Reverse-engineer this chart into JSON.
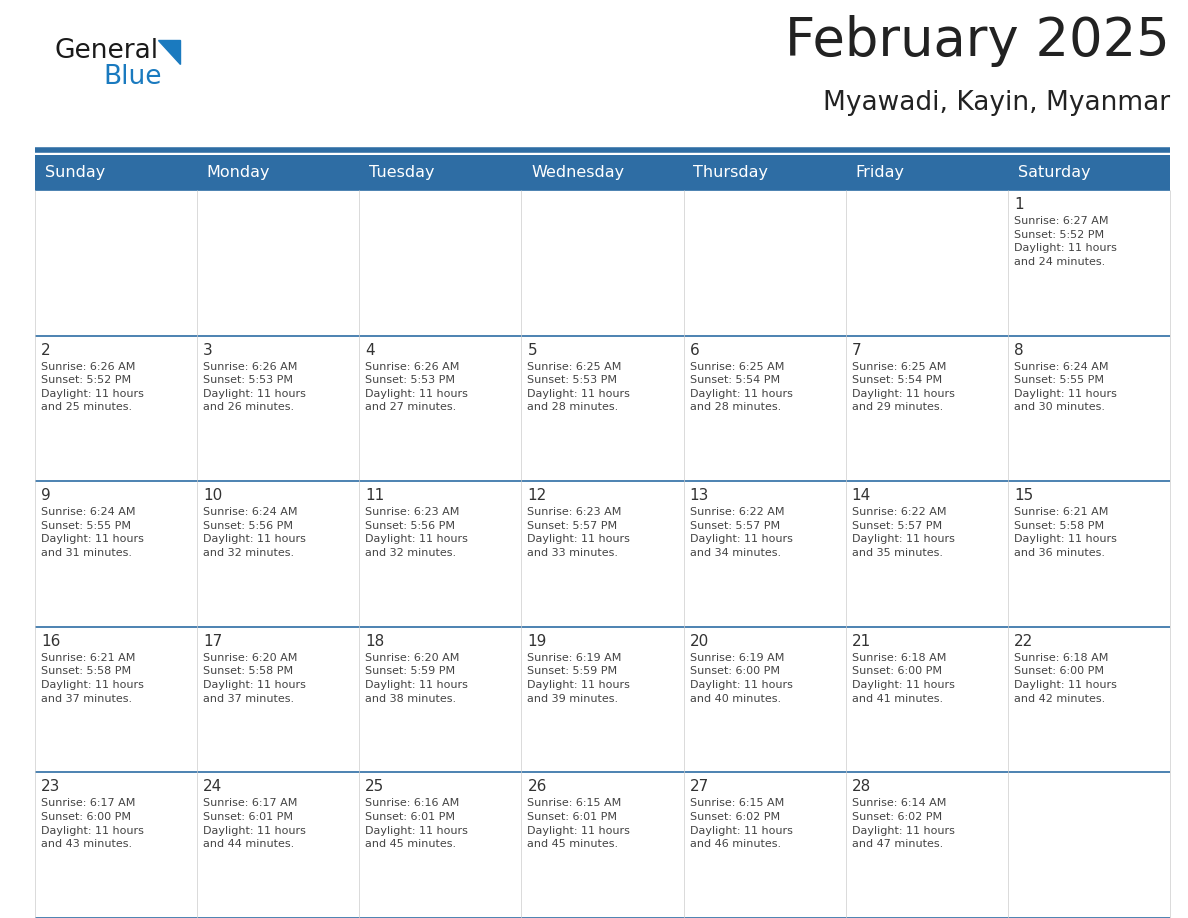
{
  "title": "February 2025",
  "subtitle": "Myawadi, Kayin, Myanmar",
  "header_color": "#2E6DA4",
  "header_text_color": "#FFFFFF",
  "cell_bg_color": "#FFFFFF",
  "cell_alt_bg": "#F5F5F5",
  "border_color": "#2E6DA4",
  "text_color": "#444444",
  "day_number_color": "#333333",
  "days_of_week": [
    "Sunday",
    "Monday",
    "Tuesday",
    "Wednesday",
    "Thursday",
    "Friday",
    "Saturday"
  ],
  "weeks": [
    [
      {
        "day": null,
        "info": null
      },
      {
        "day": null,
        "info": null
      },
      {
        "day": null,
        "info": null
      },
      {
        "day": null,
        "info": null
      },
      {
        "day": null,
        "info": null
      },
      {
        "day": null,
        "info": null
      },
      {
        "day": 1,
        "info": "Sunrise: 6:27 AM\nSunset: 5:52 PM\nDaylight: 11 hours\nand 24 minutes."
      }
    ],
    [
      {
        "day": 2,
        "info": "Sunrise: 6:26 AM\nSunset: 5:52 PM\nDaylight: 11 hours\nand 25 minutes."
      },
      {
        "day": 3,
        "info": "Sunrise: 6:26 AM\nSunset: 5:53 PM\nDaylight: 11 hours\nand 26 minutes."
      },
      {
        "day": 4,
        "info": "Sunrise: 6:26 AM\nSunset: 5:53 PM\nDaylight: 11 hours\nand 27 minutes."
      },
      {
        "day": 5,
        "info": "Sunrise: 6:25 AM\nSunset: 5:53 PM\nDaylight: 11 hours\nand 28 minutes."
      },
      {
        "day": 6,
        "info": "Sunrise: 6:25 AM\nSunset: 5:54 PM\nDaylight: 11 hours\nand 28 minutes."
      },
      {
        "day": 7,
        "info": "Sunrise: 6:25 AM\nSunset: 5:54 PM\nDaylight: 11 hours\nand 29 minutes."
      },
      {
        "day": 8,
        "info": "Sunrise: 6:24 AM\nSunset: 5:55 PM\nDaylight: 11 hours\nand 30 minutes."
      }
    ],
    [
      {
        "day": 9,
        "info": "Sunrise: 6:24 AM\nSunset: 5:55 PM\nDaylight: 11 hours\nand 31 minutes."
      },
      {
        "day": 10,
        "info": "Sunrise: 6:24 AM\nSunset: 5:56 PM\nDaylight: 11 hours\nand 32 minutes."
      },
      {
        "day": 11,
        "info": "Sunrise: 6:23 AM\nSunset: 5:56 PM\nDaylight: 11 hours\nand 32 minutes."
      },
      {
        "day": 12,
        "info": "Sunrise: 6:23 AM\nSunset: 5:57 PM\nDaylight: 11 hours\nand 33 minutes."
      },
      {
        "day": 13,
        "info": "Sunrise: 6:22 AM\nSunset: 5:57 PM\nDaylight: 11 hours\nand 34 minutes."
      },
      {
        "day": 14,
        "info": "Sunrise: 6:22 AM\nSunset: 5:57 PM\nDaylight: 11 hours\nand 35 minutes."
      },
      {
        "day": 15,
        "info": "Sunrise: 6:21 AM\nSunset: 5:58 PM\nDaylight: 11 hours\nand 36 minutes."
      }
    ],
    [
      {
        "day": 16,
        "info": "Sunrise: 6:21 AM\nSunset: 5:58 PM\nDaylight: 11 hours\nand 37 minutes."
      },
      {
        "day": 17,
        "info": "Sunrise: 6:20 AM\nSunset: 5:58 PM\nDaylight: 11 hours\nand 37 minutes."
      },
      {
        "day": 18,
        "info": "Sunrise: 6:20 AM\nSunset: 5:59 PM\nDaylight: 11 hours\nand 38 minutes."
      },
      {
        "day": 19,
        "info": "Sunrise: 6:19 AM\nSunset: 5:59 PM\nDaylight: 11 hours\nand 39 minutes."
      },
      {
        "day": 20,
        "info": "Sunrise: 6:19 AM\nSunset: 6:00 PM\nDaylight: 11 hours\nand 40 minutes."
      },
      {
        "day": 21,
        "info": "Sunrise: 6:18 AM\nSunset: 6:00 PM\nDaylight: 11 hours\nand 41 minutes."
      },
      {
        "day": 22,
        "info": "Sunrise: 6:18 AM\nSunset: 6:00 PM\nDaylight: 11 hours\nand 42 minutes."
      }
    ],
    [
      {
        "day": 23,
        "info": "Sunrise: 6:17 AM\nSunset: 6:00 PM\nDaylight: 11 hours\nand 43 minutes."
      },
      {
        "day": 24,
        "info": "Sunrise: 6:17 AM\nSunset: 6:01 PM\nDaylight: 11 hours\nand 44 minutes."
      },
      {
        "day": 25,
        "info": "Sunrise: 6:16 AM\nSunset: 6:01 PM\nDaylight: 11 hours\nand 45 minutes."
      },
      {
        "day": 26,
        "info": "Sunrise: 6:15 AM\nSunset: 6:01 PM\nDaylight: 11 hours\nand 45 minutes."
      },
      {
        "day": 27,
        "info": "Sunrise: 6:15 AM\nSunset: 6:02 PM\nDaylight: 11 hours\nand 46 minutes."
      },
      {
        "day": 28,
        "info": "Sunrise: 6:14 AM\nSunset: 6:02 PM\nDaylight: 11 hours\nand 47 minutes."
      },
      {
        "day": null,
        "info": null
      }
    ]
  ],
  "logo_text_general": "General",
  "logo_text_blue": "Blue",
  "logo_color_general": "#1a1a1a",
  "logo_color_blue": "#1a7abf",
  "logo_triangle_color": "#1a7abf"
}
